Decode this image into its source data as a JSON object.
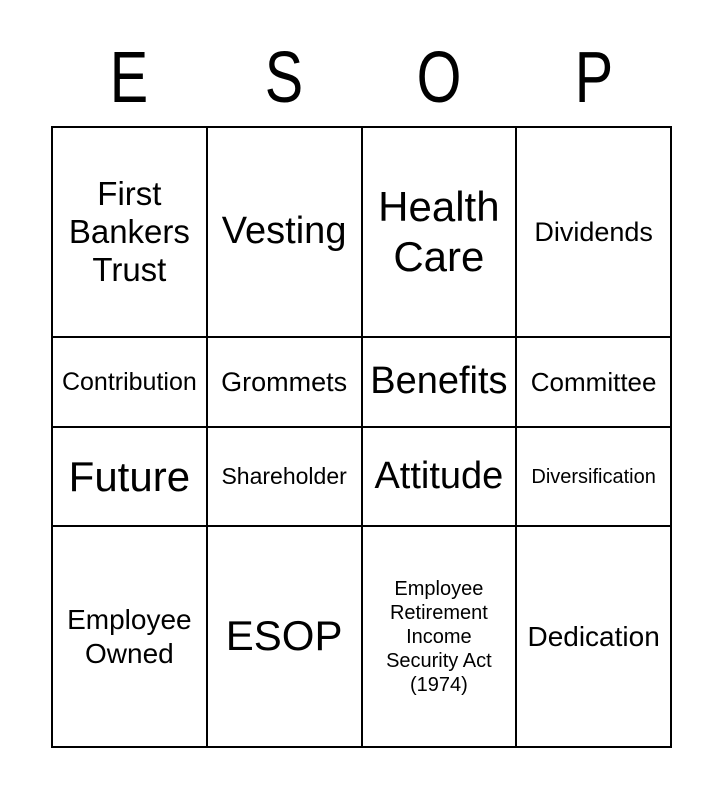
{
  "title": {
    "letters": [
      "E",
      "S",
      "O",
      "P"
    ]
  },
  "board": {
    "columns": 4,
    "rows": [
      [
        "First Bankers Trust",
        "Vesting",
        "Health Care",
        "Dividends"
      ],
      [
        "Contribution",
        "Grommets",
        "Benefits",
        "Committee"
      ],
      [
        "Future",
        "Shareholder",
        "Attitude",
        "Diversification"
      ],
      [
        "Employee Owned",
        "ESOP",
        "Employee Retirement Income Security Act (1974)",
        "Dedication"
      ]
    ]
  },
  "colors": {
    "text": "#000000",
    "background": "#ffffff",
    "grid_line": "#000000"
  }
}
